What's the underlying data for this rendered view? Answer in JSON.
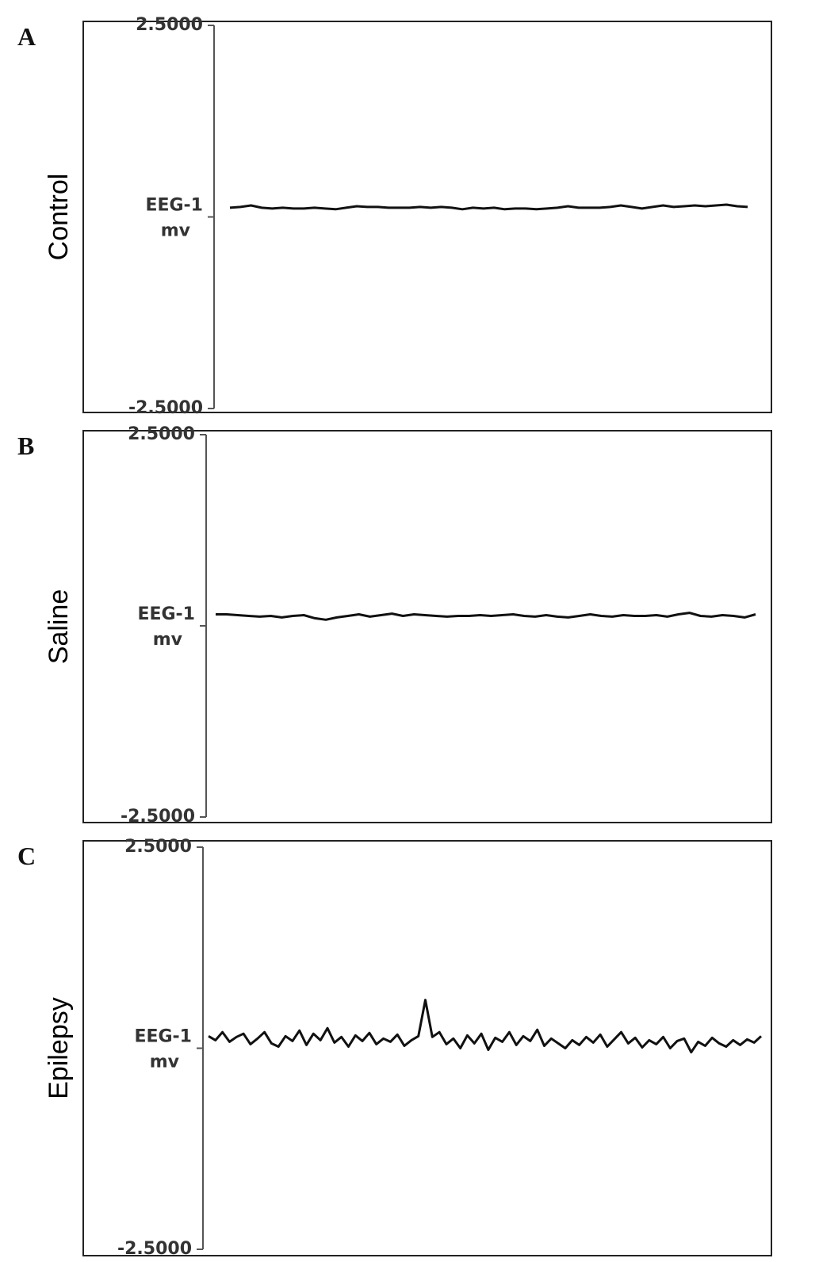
{
  "chart_data": [
    {
      "type": "line",
      "panel": "A",
      "title": "Control",
      "color": "#111111",
      "yunit": "mv",
      "ylim": [
        -2.5,
        2.5
      ],
      "yticks": [
        {
          "value": 2.5,
          "label": "2.5000"
        },
        {
          "value": 0,
          "label": "EEG-1"
        },
        {
          "value": -2.5,
          "label": "-2.5000"
        }
      ],
      "values": [
        0.12,
        0.13,
        0.15,
        0.12,
        0.11,
        0.12,
        0.11,
        0.11,
        0.12,
        0.11,
        0.1,
        0.12,
        0.14,
        0.13,
        0.13,
        0.12,
        0.12,
        0.12,
        0.13,
        0.12,
        0.13,
        0.12,
        0.1,
        0.12,
        0.11,
        0.12,
        0.1,
        0.11,
        0.11,
        0.1,
        0.11,
        0.12,
        0.14,
        0.12,
        0.12,
        0.12,
        0.13,
        0.15,
        0.13,
        0.11,
        0.13,
        0.15,
        0.13,
        0.14,
        0.15,
        0.14,
        0.15,
        0.16,
        0.14,
        0.13
      ]
    },
    {
      "type": "line",
      "panel": "B",
      "title": "Saline",
      "color": "#111111",
      "yunit": "mv",
      "ylim": [
        -2.5,
        2.5
      ],
      "yticks": [
        {
          "value": 2.5,
          "label": "2.5000"
        },
        {
          "value": 0,
          "label": "EEG-1"
        },
        {
          "value": -2.5,
          "label": "-2.5000"
        }
      ],
      "values": [
        0.15,
        0.15,
        0.14,
        0.13,
        0.12,
        0.13,
        0.11,
        0.13,
        0.14,
        0.1,
        0.08,
        0.11,
        0.13,
        0.15,
        0.12,
        0.14,
        0.16,
        0.13,
        0.15,
        0.14,
        0.13,
        0.12,
        0.13,
        0.13,
        0.14,
        0.13,
        0.14,
        0.15,
        0.13,
        0.12,
        0.14,
        0.12,
        0.11,
        0.13,
        0.15,
        0.13,
        0.12,
        0.14,
        0.13,
        0.13,
        0.14,
        0.12,
        0.15,
        0.17,
        0.13,
        0.12,
        0.14,
        0.13,
        0.11,
        0.15
      ]
    },
    {
      "type": "line",
      "panel": "C",
      "title": "Epilepsy",
      "color": "#111111",
      "yunit": "mv",
      "ylim": [
        -2.5,
        2.5
      ],
      "yticks": [
        {
          "value": 2.5,
          "label": "2.5000"
        },
        {
          "value": 0,
          "label": "EEG-1"
        },
        {
          "value": -2.5,
          "label": "-2.5000"
        }
      ],
      "values": [
        0.15,
        0.1,
        0.2,
        0.08,
        0.14,
        0.18,
        0.05,
        0.12,
        0.2,
        0.06,
        0.02,
        0.15,
        0.09,
        0.22,
        0.04,
        0.18,
        0.1,
        0.25,
        0.07,
        0.14,
        0.02,
        0.16,
        0.09,
        0.19,
        0.05,
        0.12,
        0.08,
        0.17,
        0.03,
        0.1,
        0.15,
        0.6,
        0.14,
        0.2,
        0.05,
        0.12,
        0.0,
        0.16,
        0.06,
        0.18,
        -0.02,
        0.13,
        0.08,
        0.2,
        0.04,
        0.15,
        0.09,
        0.23,
        0.03,
        0.12,
        0.06,
        0.0,
        0.1,
        0.04,
        0.14,
        0.07,
        0.17,
        0.02,
        0.11,
        0.2,
        0.06,
        0.13,
        0.01,
        0.1,
        0.05,
        0.14,
        0.0,
        0.09,
        0.12,
        -0.05,
        0.08,
        0.03,
        0.13,
        0.06,
        0.02,
        0.1,
        0.04,
        0.11,
        0.07,
        0.15
      ]
    }
  ]
}
